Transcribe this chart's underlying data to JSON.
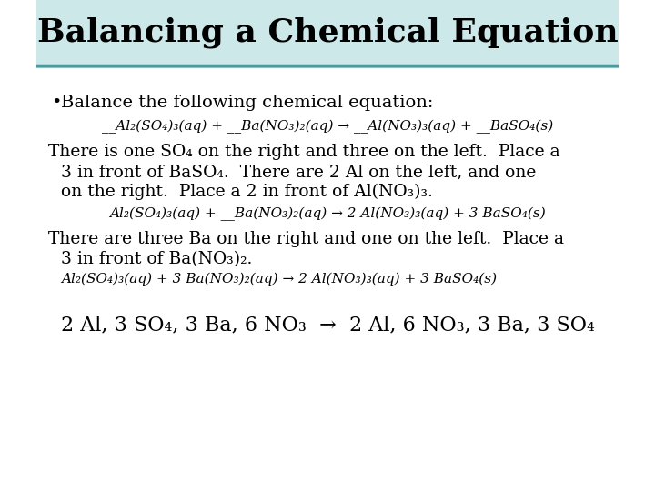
{
  "title": "Balancing a Chemical Equation",
  "title_bg": "#cce8e8",
  "title_color": "#000000",
  "body_bg": "#ffffff",
  "title_fontsize": 26,
  "title_font": "DejaVu Serif",
  "body_font": "DejaVu Serif",
  "separator_color": "#4a9aa0",
  "bullet_text": "Balance the following chemical equation:",
  "eq1": "__Al₂(SO₄)₃(aq) + __Ba(NO₃)₂(aq) → __Al(NO₃)₃(aq) + __BaSO₄(s)",
  "body1_line1": "There is one SO₄ on the right and three on the left.  Place a",
  "body1_line2": "3 in front of BaSO₄.  There are 2 Al on the left, and one",
  "body1_line3": "on the right.  Place a 2 in front of Al(NO₃)₃.",
  "eq2": "Al₂(SO₄)₃(aq) + __Ba(NO₃)₂(aq) → 2 Al(NO₃)₃(aq) + 3 BaSO₄(s)",
  "body2_line1": "There are three Ba on the right and one on the left.  Place a",
  "body2_line2": "3 in front of Ba(NO₃)₂.",
  "eq3": "Al₂(SO₄)₃(aq) + 3 Ba(NO₃)₂(aq) → 2 Al(NO₃)₃(aq) + 3 BaSO₄(s)",
  "bottom_line": "2 Al, 3 SO₄, 3 Ba, 6 NO₃  →  2 Al, 6 NO₃, 3 Ba, 3 SO₄"
}
